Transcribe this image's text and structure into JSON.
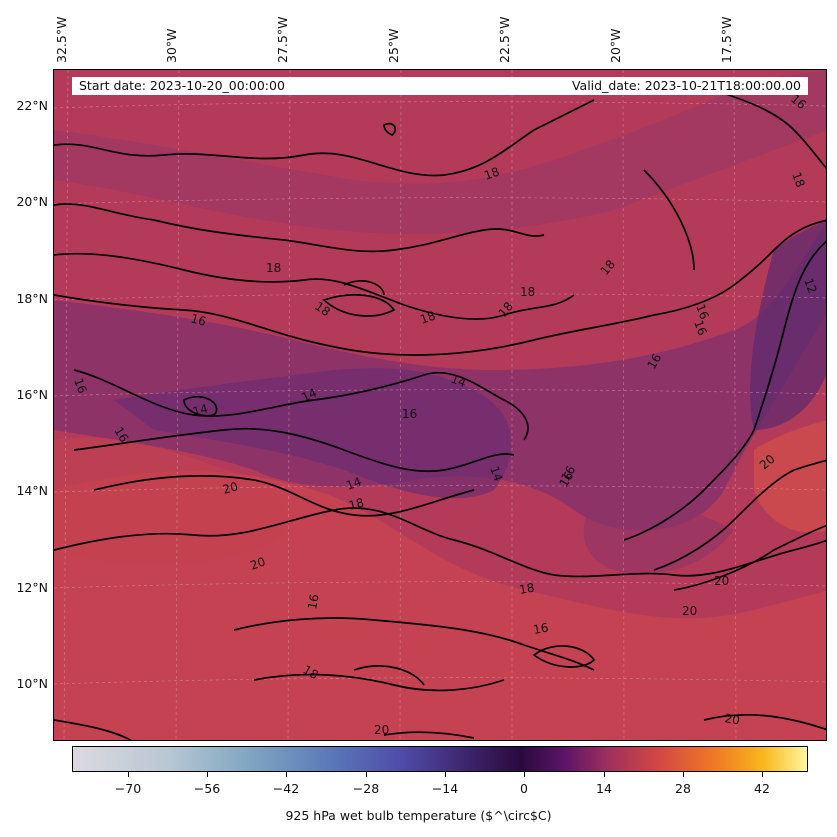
{
  "map": {
    "lon_labels": [
      "32.5°W",
      "30°W",
      "27.5°W",
      "25°W",
      "22.5°W",
      "20°W",
      "17.5°W"
    ],
    "lat_labels": [
      "22°N",
      "20°N",
      "18°N",
      "16°N",
      "14°N",
      "12°N",
      "10°N"
    ],
    "start_date": "Start date: 2023-10-20_00:00:00",
    "valid_date": "Valid_date: 2023-10-21T18:00:00.00",
    "contour_labels": [
      "18",
      "18",
      "18",
      "18",
      "18",
      "18",
      "18",
      "16",
      "16",
      "16",
      "16",
      "14",
      "14",
      "14",
      "14",
      "14",
      "12",
      "16",
      "18",
      "16",
      "20",
      "20",
      "20",
      "20",
      "20",
      "20",
      "20",
      "18",
      "16",
      "16",
      "18",
      "20",
      "18",
      "16",
      "16",
      "16",
      "16"
    ],
    "colors": {
      "field_base": "#b43a5a",
      "field_warm": "#c94650",
      "field_cool": "#7a2f70",
      "field_cold": "#5a2a6e",
      "contour": "#000000"
    }
  },
  "colorbar": {
    "tick_labels": [
      "−70",
      "−56",
      "−42",
      "−28",
      "−14",
      "0",
      "14",
      "28",
      "42"
    ],
    "title": "925 hPa wet bulb temperature ($^\\circ$C)",
    "range": [
      -79,
      48
    ]
  }
}
